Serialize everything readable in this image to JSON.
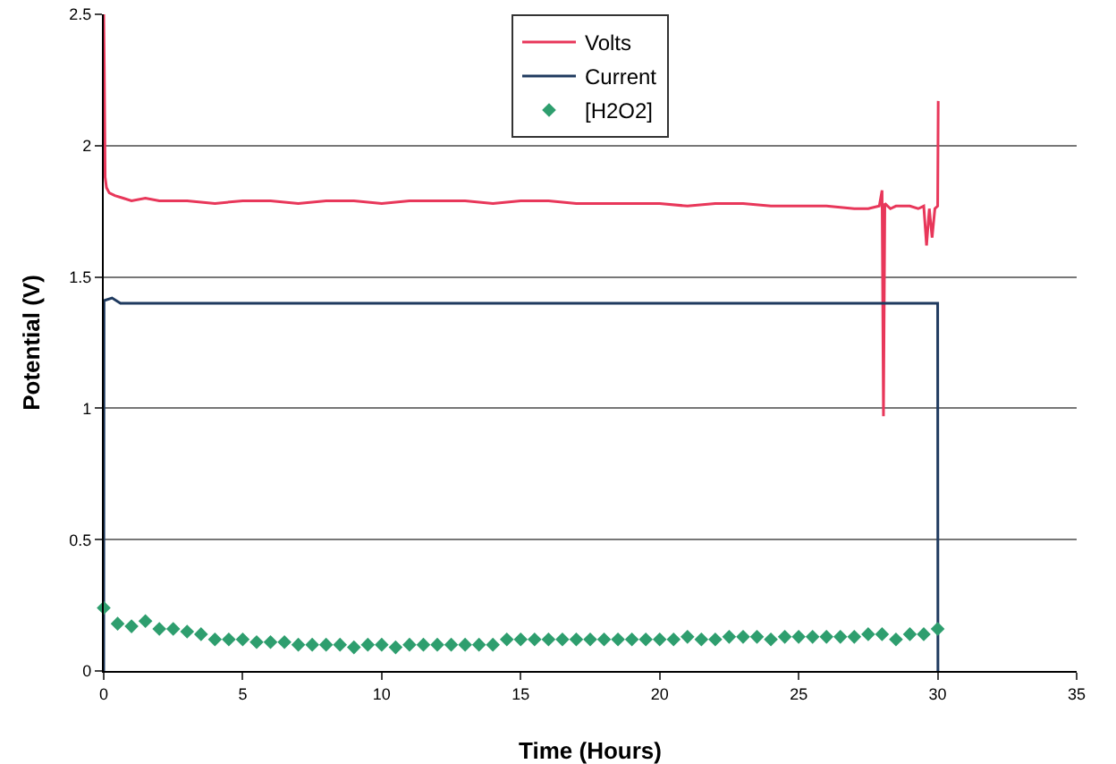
{
  "chart_data": {
    "type": "line",
    "xlabel": "Time (Hours)",
    "ylabel": "Potential (V)",
    "xlim": [
      0,
      35
    ],
    "xticks": [
      0,
      5,
      10,
      15,
      20,
      25,
      30,
      35
    ],
    "ylim": [
      0,
      2.5
    ],
    "yticks": [
      0,
      0.5,
      1,
      1.5,
      2,
      2.5
    ],
    "grid": "y",
    "legend": "top",
    "series": [
      {
        "name": "Volts",
        "color": "#e8375a",
        "marker": "none",
        "x": [
          0,
          0.02,
          0.05,
          0.1,
          0.2,
          0.4,
          0.7,
          1,
          1.5,
          2,
          3,
          4,
          5,
          6,
          7,
          8,
          9,
          10,
          11,
          12,
          13,
          14,
          15,
          16,
          17,
          18,
          19,
          20,
          21,
          22,
          23,
          24,
          25,
          26,
          27,
          27.5,
          27.9,
          28,
          28.05,
          28.1,
          28.3,
          28.5,
          29,
          29.3,
          29.5,
          29.6,
          29.7,
          29.8,
          29.9,
          30,
          30.02
        ],
        "values": [
          2.5,
          2.3,
          1.88,
          1.84,
          1.82,
          1.81,
          1.8,
          1.79,
          1.8,
          1.79,
          1.79,
          1.78,
          1.79,
          1.79,
          1.78,
          1.79,
          1.79,
          1.78,
          1.79,
          1.79,
          1.79,
          1.78,
          1.79,
          1.79,
          1.78,
          1.78,
          1.78,
          1.78,
          1.77,
          1.78,
          1.78,
          1.77,
          1.77,
          1.77,
          1.76,
          1.76,
          1.77,
          1.83,
          0.97,
          1.78,
          1.76,
          1.77,
          1.77,
          1.76,
          1.77,
          1.62,
          1.76,
          1.65,
          1.76,
          1.77,
          2.17
        ]
      },
      {
        "name": "Current",
        "color": "#1f3a5f",
        "marker": "none",
        "x": [
          0,
          0.01,
          0.3,
          0.6,
          1,
          30,
          30.01
        ],
        "values": [
          0,
          1.41,
          1.42,
          1.4,
          1.4,
          1.4,
          0
        ]
      },
      {
        "name": "[H2O2]",
        "type": "scatter",
        "color": "#2e9e6e",
        "marker": "diamond",
        "x": [
          0,
          0.5,
          1,
          1.5,
          2,
          2.5,
          3,
          3.5,
          4,
          4.5,
          5,
          5.5,
          6,
          6.5,
          7,
          7.5,
          8,
          8.5,
          9,
          9.5,
          10,
          10.5,
          11,
          11.5,
          12,
          12.5,
          13,
          13.5,
          14,
          14.5,
          15,
          15.5,
          16,
          16.5,
          17,
          17.5,
          18,
          18.5,
          19,
          19.5,
          20,
          20.5,
          21,
          21.5,
          22,
          22.5,
          23,
          23.5,
          24,
          24.5,
          25,
          25.5,
          26,
          26.5,
          27,
          27.5,
          28,
          28.5,
          29,
          29.5,
          30
        ],
        "values": [
          0.24,
          0.18,
          0.17,
          0.19,
          0.16,
          0.16,
          0.15,
          0.14,
          0.12,
          0.12,
          0.12,
          0.11,
          0.11,
          0.11,
          0.1,
          0.1,
          0.1,
          0.1,
          0.09,
          0.1,
          0.1,
          0.09,
          0.1,
          0.1,
          0.1,
          0.1,
          0.1,
          0.1,
          0.1,
          0.12,
          0.12,
          0.12,
          0.12,
          0.12,
          0.12,
          0.12,
          0.12,
          0.12,
          0.12,
          0.12,
          0.12,
          0.12,
          0.13,
          0.12,
          0.12,
          0.13,
          0.13,
          0.13,
          0.12,
          0.13,
          0.13,
          0.13,
          0.13,
          0.13,
          0.13,
          0.14,
          0.14,
          0.12,
          0.14,
          0.14,
          0.16
        ]
      }
    ]
  }
}
